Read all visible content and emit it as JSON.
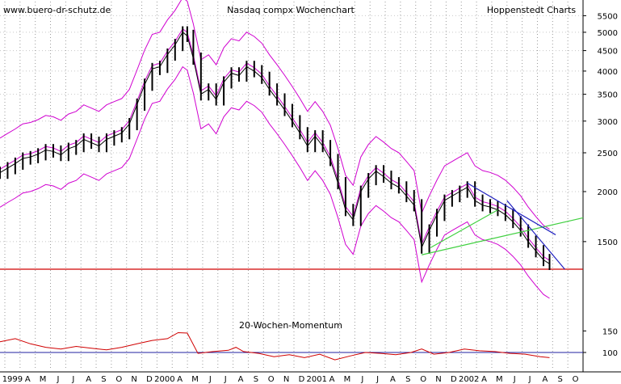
{
  "site": "www.buero-dr-schutz.de",
  "chart_data": {
    "type": "line",
    "title": "Nasdaq compx Wochenchart",
    "source": "Hoppenstedt Charts",
    "yscale": "log",
    "price": {
      "ylim": [
        1150,
        5800
      ],
      "yticks": [
        1500,
        2000,
        2500,
        3000,
        3500,
        4000,
        4500,
        5000,
        5500
      ],
      "closes": [
        [
          1998.95,
          2230
        ],
        [
          1999.0,
          2290
        ],
        [
          1999.05,
          2350
        ],
        [
          1999.1,
          2420
        ],
        [
          1999.15,
          2440
        ],
        [
          1999.2,
          2480
        ],
        [
          1999.25,
          2540
        ],
        [
          1999.3,
          2520
        ],
        [
          1999.35,
          2470
        ],
        [
          1999.4,
          2560
        ],
        [
          1999.45,
          2600
        ],
        [
          1999.5,
          2700
        ],
        [
          1999.55,
          2650
        ],
        [
          1999.6,
          2600
        ],
        [
          1999.65,
          2700
        ],
        [
          1999.7,
          2750
        ],
        [
          1999.75,
          2800
        ],
        [
          1999.8,
          2950
        ],
        [
          1999.85,
          3300
        ],
        [
          1999.9,
          3700
        ],
        [
          1999.95,
          4050
        ],
        [
          2000.0,
          4100
        ],
        [
          2000.05,
          4400
        ],
        [
          2000.1,
          4650
        ],
        [
          2000.15,
          5000
        ],
        [
          2000.18,
          4900
        ],
        [
          2000.22,
          4300
        ],
        [
          2000.27,
          3500
        ],
        [
          2000.32,
          3600
        ],
        [
          2000.37,
          3400
        ],
        [
          2000.42,
          3750
        ],
        [
          2000.47,
          3950
        ],
        [
          2000.52,
          3900
        ],
        [
          2000.57,
          4100
        ],
        [
          2000.62,
          4000
        ],
        [
          2000.67,
          3850
        ],
        [
          2000.72,
          3600
        ],
        [
          2000.77,
          3400
        ],
        [
          2000.82,
          3200
        ],
        [
          2000.87,
          3000
        ],
        [
          2000.92,
          2800
        ],
        [
          2000.97,
          2600
        ],
        [
          2001.02,
          2750
        ],
        [
          2001.07,
          2600
        ],
        [
          2001.12,
          2400
        ],
        [
          2001.17,
          2100
        ],
        [
          2001.22,
          1800
        ],
        [
          2001.27,
          1700
        ],
        [
          2001.32,
          2000
        ],
        [
          2001.37,
          2150
        ],
        [
          2001.42,
          2250
        ],
        [
          2001.47,
          2180
        ],
        [
          2001.52,
          2100
        ],
        [
          2001.57,
          2050
        ],
        [
          2001.62,
          1950
        ],
        [
          2001.67,
          1850
        ],
        [
          2001.72,
          1450
        ],
        [
          2001.77,
          1600
        ],
        [
          2001.82,
          1750
        ],
        [
          2001.87,
          1900
        ],
        [
          2001.92,
          1950
        ],
        [
          2001.97,
          2000
        ],
        [
          2002.02,
          2050
        ],
        [
          2002.07,
          1900
        ],
        [
          2002.12,
          1850
        ],
        [
          2002.17,
          1830
        ],
        [
          2002.22,
          1800
        ],
        [
          2002.27,
          1750
        ],
        [
          2002.32,
          1680
        ],
        [
          2002.37,
          1600
        ],
        [
          2002.42,
          1500
        ],
        [
          2002.47,
          1420
        ],
        [
          2002.52,
          1350
        ],
        [
          2002.56,
          1320
        ]
      ]
    },
    "momentum": {
      "title": "20-Wochen-Momentum",
      "yticks": [
        100,
        150
      ],
      "reference": 100,
      "values": [
        [
          1998.95,
          125
        ],
        [
          1999.05,
          132
        ],
        [
          1999.15,
          120
        ],
        [
          1999.25,
          112
        ],
        [
          1999.35,
          108
        ],
        [
          1999.45,
          114
        ],
        [
          1999.55,
          110
        ],
        [
          1999.65,
          106
        ],
        [
          1999.75,
          112
        ],
        [
          1999.85,
          120
        ],
        [
          1999.95,
          128
        ],
        [
          2000.05,
          132
        ],
        [
          2000.12,
          146
        ],
        [
          2000.18,
          145
        ],
        [
          2000.25,
          98
        ],
        [
          2000.35,
          102
        ],
        [
          2000.45,
          105
        ],
        [
          2000.5,
          112
        ],
        [
          2000.55,
          102
        ],
        [
          2000.65,
          98
        ],
        [
          2000.75,
          90
        ],
        [
          2000.85,
          95
        ],
        [
          2000.95,
          88
        ],
        [
          2001.05,
          96
        ],
        [
          2001.15,
          83
        ],
        [
          2001.25,
          92
        ],
        [
          2001.35,
          100
        ],
        [
          2001.45,
          98
        ],
        [
          2001.55,
          95
        ],
        [
          2001.65,
          100
        ],
        [
          2001.72,
          108
        ],
        [
          2001.8,
          96
        ],
        [
          2001.9,
          100
        ],
        [
          2002.0,
          108
        ],
        [
          2002.1,
          104
        ],
        [
          2002.2,
          102
        ],
        [
          2002.3,
          98
        ],
        [
          2002.4,
          96
        ],
        [
          2002.5,
          90
        ],
        [
          2002.56,
          88
        ]
      ]
    },
    "x_ticks": [
      "1999",
      "A",
      "M",
      "J",
      "J",
      "A",
      "S",
      "O",
      "N",
      "D",
      "2000",
      "A",
      "M",
      "J",
      "J",
      "A",
      "S",
      "O",
      "N",
      "D",
      "2001",
      "A",
      "M",
      "J",
      "J",
      "A",
      "S",
      "O",
      "N",
      "D",
      "2002",
      "A",
      "M",
      "J",
      "J",
      "A",
      "S",
      "O"
    ],
    "x_tick_labels_printed": [
      "1999",
      "A",
      "M",
      "J",
      "J",
      "A",
      "S",
      "O",
      "N",
      "D",
      "2000",
      "A",
      "M",
      "J",
      "J",
      "A",
      "S",
      "O",
      "N",
      "D",
      "2001",
      "A",
      "M",
      "J",
      "J",
      "A",
      "S",
      "O",
      "N",
      "D",
      "2002",
      "A",
      "M",
      "J",
      "J",
      "A",
      "S",
      "O"
    ],
    "band_color": "#d000d0",
    "series_color": "#000000",
    "trendline_colors": [
      "#40d040",
      "#2020c0"
    ],
    "support_line": 1280,
    "support_color": "#d00000",
    "grid": true
  }
}
